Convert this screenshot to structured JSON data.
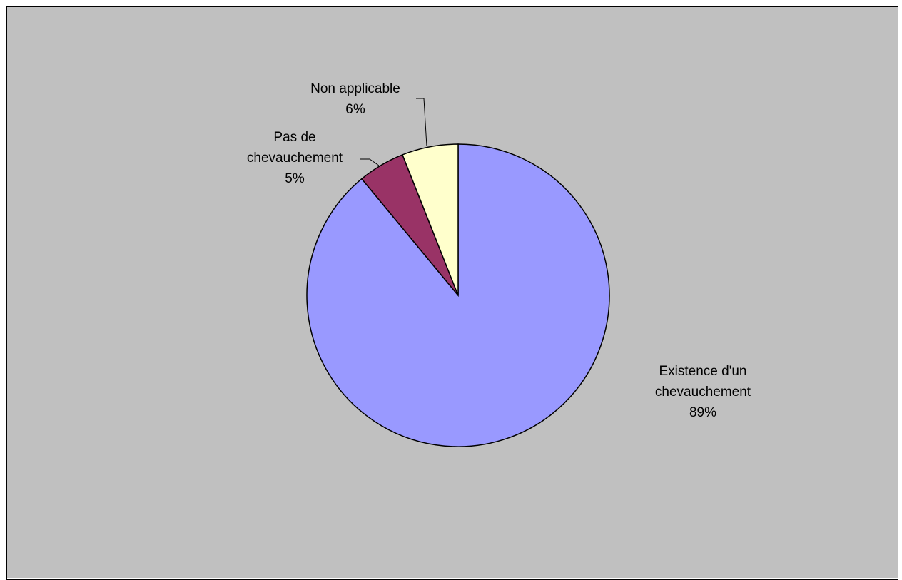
{
  "chart_data": {
    "type": "pie",
    "background_color": "#C0C0C0",
    "outline_color": "#000000",
    "slices": [
      {
        "label_lines": [
          "Existence d'un",
          "chevauchement"
        ],
        "value": 89,
        "percent_label": "89%",
        "color": "#9999FF"
      },
      {
        "label_lines": [
          "Pas de",
          "chevauchement"
        ],
        "value": 5,
        "percent_label": "5%",
        "color": "#993366"
      },
      {
        "label_lines": [
          "Non applicable"
        ],
        "value": 6,
        "percent_label": "6%",
        "color": "#FFFFCC"
      }
    ]
  }
}
